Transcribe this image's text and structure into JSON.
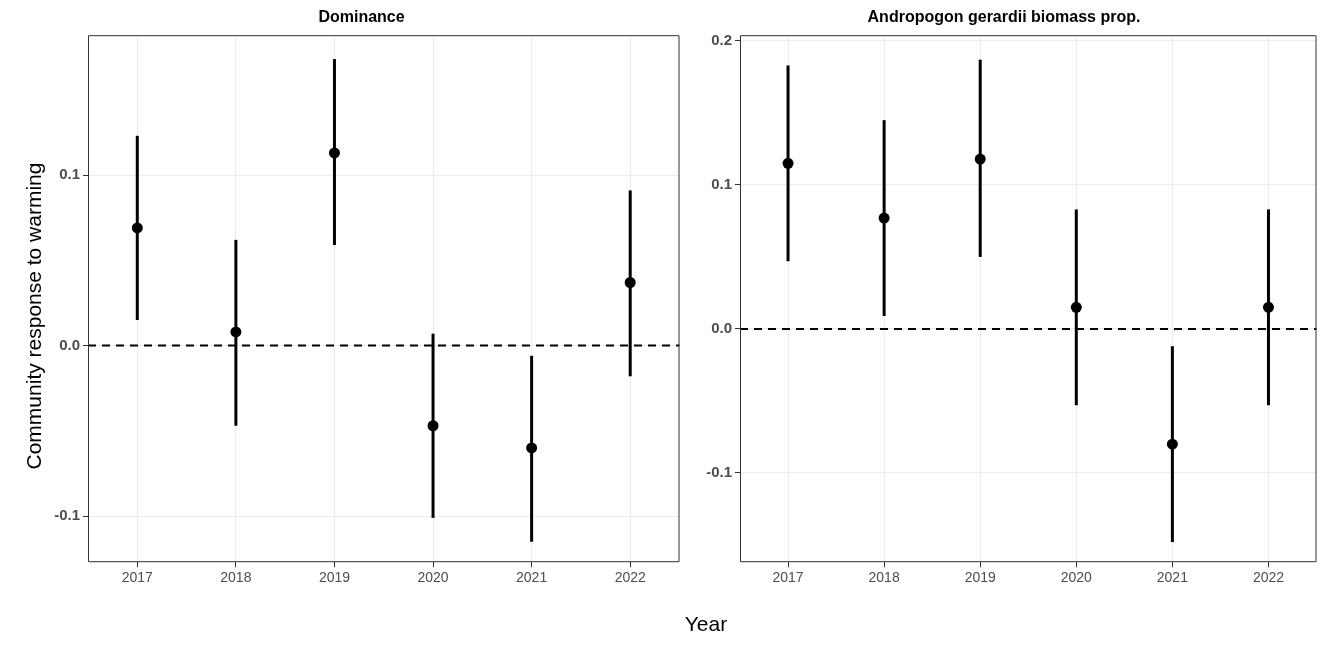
{
  "chart_data": [
    {
      "type": "scatter",
      "title": "Dominance",
      "ylabel": "Community response to warming",
      "xlabel": "Year",
      "categories": [
        "2017",
        "2018",
        "2019",
        "2020",
        "2021",
        "2022"
      ],
      "series": [
        {
          "color": "#000000",
          "values": [
            0.069,
            0.008,
            0.113,
            -0.047,
            -0.06,
            0.037
          ],
          "errors": [
            [
              0.015,
              0.123
            ],
            [
              -0.047,
              0.062
            ],
            [
              0.059,
              0.168
            ],
            [
              -0.101,
              0.007
            ],
            [
              -0.115,
              -0.006
            ],
            [
              -0.018,
              0.091
            ]
          ]
        }
      ],
      "ylim": [
        -0.127,
        0.182
      ],
      "yticks": [
        {
          "value": -0.1,
          "label": "-0.1"
        },
        {
          "value": 0,
          "label": "0.0"
        },
        {
          "value": 0.1,
          "label": "0.1"
        }
      ],
      "ref_lines": [
        {
          "axis": "y",
          "value": 0,
          "line_style": "dashed",
          "color": "#000000"
        }
      ],
      "grid": true,
      "marker": "circle",
      "legend": false
    },
    {
      "type": "scatter",
      "title": "Andropogon gerardii biomass prop.",
      "categories": [
        "2017",
        "2018",
        "2019",
        "2020",
        "2021",
        "2022"
      ],
      "series": [
        {
          "color": "#000000",
          "values": [
            0.115,
            0.077,
            0.118,
            0.015,
            -0.08,
            0.015
          ],
          "errors": [
            [
              0.047,
              0.183
            ],
            [
              0.009,
              0.145
            ],
            [
              0.05,
              0.187
            ],
            [
              -0.053,
              0.083
            ],
            [
              -0.148,
              -0.012
            ],
            [
              -0.053,
              0.083
            ]
          ]
        }
      ],
      "ylim": [
        -0.162,
        0.204
      ],
      "yticks": [
        {
          "value": -0.1,
          "label": "-0.1"
        },
        {
          "value": 0,
          "label": "0.0"
        },
        {
          "value": 0.1,
          "label": "0.1"
        },
        {
          "value": 0.2,
          "label": "0.2"
        }
      ],
      "ref_lines": [
        {
          "axis": "y",
          "value": 0,
          "line_style": "dashed",
          "color": "#000000"
        }
      ],
      "grid": true,
      "marker": "circle",
      "legend": false
    }
  ]
}
